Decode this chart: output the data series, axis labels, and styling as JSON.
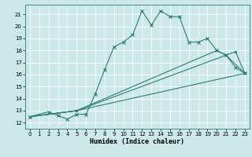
{
  "title": "",
  "xlabel": "Humidex (Indice chaleur)",
  "bg_color": "#cce8e8",
  "line_color": "#2e7d6e",
  "grid_color": "#ffffff",
  "xlim": [
    -0.5,
    23.5
  ],
  "ylim": [
    11.5,
    21.8
  ],
  "yticks": [
    12,
    13,
    14,
    15,
    16,
    17,
    18,
    19,
    20,
    21
  ],
  "xticks": [
    0,
    1,
    2,
    3,
    4,
    5,
    6,
    7,
    8,
    9,
    10,
    11,
    12,
    13,
    14,
    15,
    16,
    17,
    18,
    19,
    20,
    21,
    22,
    23
  ],
  "series": [
    {
      "x": [
        0,
        2,
        3,
        4,
        5,
        6,
        7,
        8,
        9,
        10,
        11,
        12,
        13,
        14,
        15,
        16,
        17,
        18,
        19,
        20,
        21,
        22,
        23
      ],
      "y": [
        12.5,
        12.9,
        12.6,
        12.3,
        12.7,
        12.7,
        14.4,
        16.4,
        18.3,
        18.7,
        19.3,
        21.3,
        20.1,
        21.3,
        20.8,
        20.8,
        18.7,
        18.7,
        19.0,
        18.0,
        17.6,
        16.6,
        16.1
      ]
    },
    {
      "x": [
        0,
        5,
        23
      ],
      "y": [
        12.5,
        13.0,
        16.1
      ]
    },
    {
      "x": [
        0,
        5,
        22,
        23
      ],
      "y": [
        12.5,
        13.0,
        17.9,
        16.1
      ]
    },
    {
      "x": [
        0,
        5,
        20,
        21,
        23
      ],
      "y": [
        12.5,
        13.0,
        18.0,
        17.6,
        16.1
      ]
    }
  ]
}
